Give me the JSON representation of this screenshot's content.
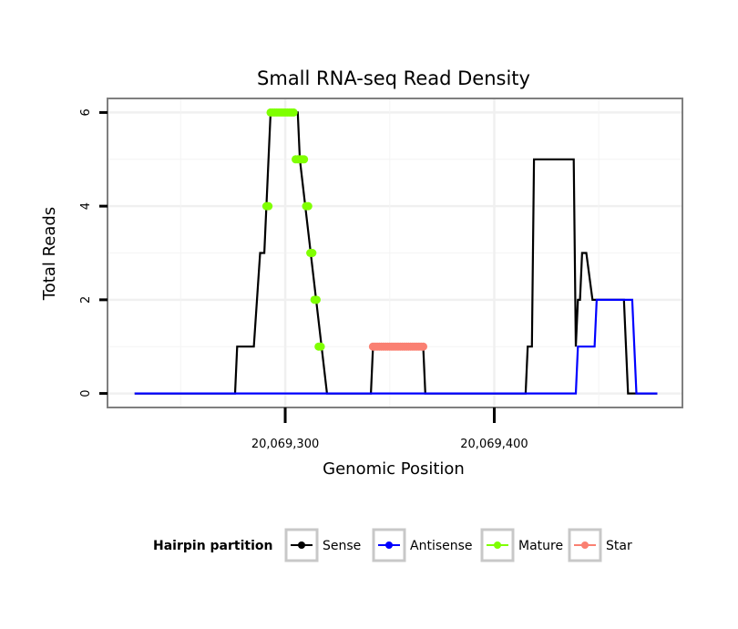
{
  "chart_data": {
    "type": "line",
    "title": "Small RNA-seq Read Density",
    "xlabel": "Genomic Position",
    "ylabel": "Total Reads",
    "xlim": [
      20069215,
      20069490
    ],
    "ylim": [
      -0.3,
      6.3
    ],
    "x_ticks": [
      20069300,
      20069400
    ],
    "x_tick_labels": [
      "20,069,300",
      "20,069,400"
    ],
    "y_ticks": [
      0,
      2,
      4,
      6
    ],
    "y_tick_labels": [
      "0",
      "2",
      "4",
      "6"
    ],
    "grid": true,
    "legend": {
      "title": "Hairpin partition",
      "position": "bottom",
      "entries": [
        {
          "label": "Sense",
          "color": "#000000"
        },
        {
          "label": "Antisense",
          "color": "#0000ff"
        },
        {
          "label": "Mature",
          "color": "#7fff00"
        },
        {
          "label": "Star",
          "color": "#fa8072"
        }
      ]
    },
    "series": [
      {
        "name": "Sense",
        "color": "#000000",
        "kind": "line",
        "x": [
          20069228,
          20069276,
          20069277,
          20069285,
          20069288,
          20069290,
          20069293,
          20069294,
          20069306,
          20069307,
          20069320,
          20069321,
          20069341,
          20069342,
          20069366,
          20069367,
          20069415,
          20069416,
          20069418,
          20069419,
          20069438,
          20069439,
          20069440,
          20069441,
          20069442,
          20069444,
          20069447,
          20069462,
          20069464,
          20069478
        ],
        "y": [
          0,
          0,
          1,
          1,
          3,
          3,
          6,
          6,
          6,
          5,
          0,
          0,
          0,
          1,
          1,
          0,
          0,
          1,
          1,
          5,
          5,
          1,
          2,
          2,
          3,
          3,
          2,
          2,
          0,
          0
        ]
      },
      {
        "name": "Antisense",
        "color": "#0000ff",
        "kind": "line",
        "x": [
          20069228,
          20069439,
          20069440,
          20069448,
          20069449,
          20069466,
          20069468,
          20069478
        ],
        "y": [
          0,
          0,
          1,
          1,
          2,
          2,
          0,
          0
        ]
      },
      {
        "name": "Mature",
        "color": "#7fff00",
        "kind": "points",
        "x": [
          20069291,
          20069292,
          20069293,
          20069294,
          20069295,
          20069296,
          20069297,
          20069298,
          20069299,
          20069300,
          20069301,
          20069302,
          20069303,
          20069304,
          20069305,
          20069306,
          20069307,
          20069308,
          20069309,
          20069310,
          20069311,
          20069312,
          20069313,
          20069314,
          20069315,
          20069316,
          20069317
        ],
        "y": [
          4,
          4,
          6,
          6,
          6,
          6,
          6,
          6,
          6,
          6,
          6,
          6,
          6,
          6,
          5,
          5,
          5,
          5,
          5,
          4,
          4,
          3,
          3,
          2,
          2,
          1,
          1
        ]
      },
      {
        "name": "Star",
        "color": "#fa8072",
        "kind": "points",
        "x": [
          20069342,
          20069343,
          20069344,
          20069345,
          20069346,
          20069347,
          20069348,
          20069349,
          20069350,
          20069351,
          20069352,
          20069353,
          20069354,
          20069355,
          20069356,
          20069357,
          20069358,
          20069359,
          20069360,
          20069361,
          20069362,
          20069363,
          20069364,
          20069365,
          20069366
        ],
        "y": [
          1,
          1,
          1,
          1,
          1,
          1,
          1,
          1,
          1,
          1,
          1,
          1,
          1,
          1,
          1,
          1,
          1,
          1,
          1,
          1,
          1,
          1,
          1,
          1,
          1
        ]
      }
    ]
  }
}
